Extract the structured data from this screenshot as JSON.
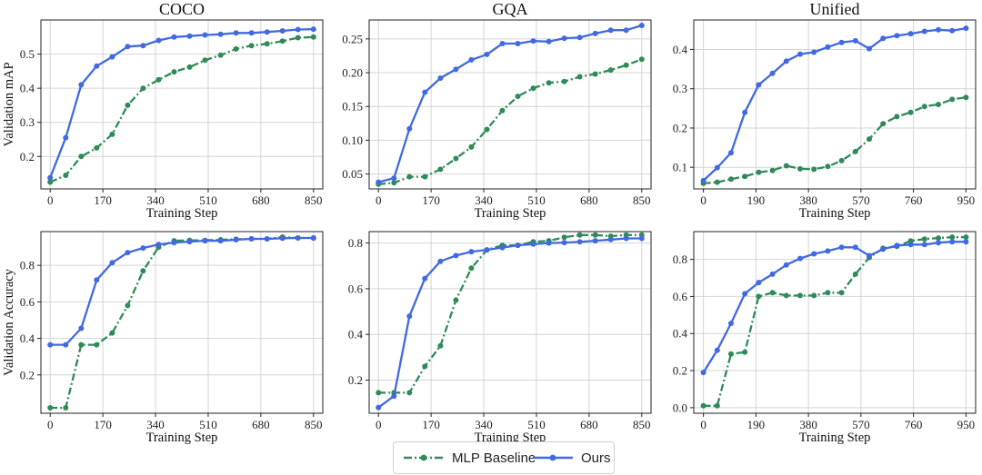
{
  "figure": {
    "legend": [
      {
        "key": "baseline",
        "label": "MLP Baseline",
        "color": "#2e8b57",
        "dash": "dash-dot"
      },
      {
        "key": "ours",
        "label": "Ours",
        "color": "#4169e1",
        "dash": "solid"
      }
    ]
  },
  "chart_data": [
    {
      "type": "line",
      "panel": "top-left",
      "title": "COCO",
      "xlabel": "Training Step",
      "ylabel": "Validation mAP",
      "xlim": [
        -30,
        880
      ],
      "ylim": [
        0.105,
        0.6
      ],
      "xticks": [
        0,
        170,
        340,
        510,
        680,
        850
      ],
      "yticks": [
        0.2,
        0.3,
        0.4,
        0.5
      ],
      "ytick_labels": [
        "0.2",
        "0.3",
        "0.4",
        "0.5"
      ],
      "grid": true,
      "series": [
        {
          "name": "MLP Baseline",
          "color": "#2e8b57",
          "dash": "dash-dot",
          "x": [
            0,
            50,
            100,
            150,
            200,
            250,
            300,
            350,
            400,
            450,
            500,
            550,
            600,
            650,
            700,
            750,
            800,
            850
          ],
          "y": [
            0.125,
            0.145,
            0.2,
            0.225,
            0.265,
            0.35,
            0.4,
            0.425,
            0.448,
            0.462,
            0.482,
            0.497,
            0.515,
            0.525,
            0.53,
            0.538,
            0.548,
            0.55
          ]
        },
        {
          "name": "Ours",
          "color": "#4169e1",
          "dash": "solid",
          "x": [
            0,
            50,
            100,
            150,
            200,
            250,
            300,
            350,
            400,
            450,
            500,
            550,
            600,
            650,
            700,
            750,
            800,
            850
          ],
          "y": [
            0.138,
            0.255,
            0.41,
            0.465,
            0.492,
            0.522,
            0.525,
            0.54,
            0.55,
            0.553,
            0.556,
            0.558,
            0.562,
            0.562,
            0.565,
            0.568,
            0.572,
            0.573
          ]
        }
      ]
    },
    {
      "type": "line",
      "panel": "top-middle",
      "title": "GQA",
      "xlabel": "Training Step",
      "ylabel": "",
      "xlim": [
        -30,
        880
      ],
      "ylim": [
        0.028,
        0.278
      ],
      "xticks": [
        0,
        170,
        340,
        510,
        680,
        850
      ],
      "yticks": [
        0.05,
        0.1,
        0.15,
        0.2,
        0.25
      ],
      "ytick_labels": [
        "0.05",
        "0.10",
        "0.15",
        "0.20",
        "0.25"
      ],
      "grid": true,
      "series": [
        {
          "name": "MLP Baseline",
          "color": "#2e8b57",
          "dash": "dash-dot",
          "x": [
            0,
            50,
            100,
            150,
            200,
            250,
            300,
            350,
            400,
            450,
            500,
            550,
            600,
            650,
            700,
            750,
            800,
            850
          ],
          "y": [
            0.035,
            0.037,
            0.046,
            0.046,
            0.057,
            0.073,
            0.09,
            0.116,
            0.144,
            0.165,
            0.177,
            0.185,
            0.187,
            0.194,
            0.198,
            0.204,
            0.211,
            0.22
          ]
        },
        {
          "name": "Ours",
          "color": "#4169e1",
          "dash": "solid",
          "x": [
            0,
            50,
            100,
            150,
            200,
            250,
            300,
            350,
            400,
            450,
            500,
            550,
            600,
            650,
            700,
            750,
            800,
            850
          ],
          "y": [
            0.038,
            0.044,
            0.117,
            0.171,
            0.192,
            0.205,
            0.219,
            0.227,
            0.243,
            0.243,
            0.247,
            0.246,
            0.251,
            0.252,
            0.258,
            0.263,
            0.263,
            0.27
          ]
        }
      ]
    },
    {
      "type": "line",
      "panel": "top-right",
      "title": "Unified",
      "xlabel": "Training Step",
      "ylabel": "",
      "xlim": [
        -35,
        985
      ],
      "ylim": [
        0.045,
        0.475
      ],
      "xticks": [
        0,
        190,
        380,
        570,
        760,
        950
      ],
      "yticks": [
        0.1,
        0.2,
        0.3,
        0.4
      ],
      "ytick_labels": [
        "0.1",
        "0.2",
        "0.3",
        "0.4"
      ],
      "grid": true,
      "series": [
        {
          "name": "MLP Baseline",
          "color": "#2e8b57",
          "dash": "dash-dot",
          "x": [
            0,
            50,
            100,
            150,
            200,
            250,
            300,
            350,
            400,
            450,
            500,
            550,
            600,
            650,
            700,
            750,
            800,
            850,
            900,
            950
          ],
          "y": [
            0.059,
            0.062,
            0.07,
            0.077,
            0.087,
            0.092,
            0.104,
            0.096,
            0.095,
            0.102,
            0.117,
            0.14,
            0.172,
            0.211,
            0.229,
            0.24,
            0.255,
            0.26,
            0.273,
            0.278
          ]
        },
        {
          "name": "Ours",
          "color": "#4169e1",
          "dash": "solid",
          "x": [
            0,
            50,
            100,
            150,
            200,
            250,
            300,
            350,
            400,
            450,
            500,
            550,
            600,
            650,
            700,
            750,
            800,
            850,
            900,
            950
          ],
          "y": [
            0.066,
            0.099,
            0.137,
            0.24,
            0.31,
            0.339,
            0.37,
            0.388,
            0.393,
            0.406,
            0.418,
            0.422,
            0.402,
            0.428,
            0.435,
            0.44,
            0.446,
            0.45,
            0.448,
            0.454
          ]
        }
      ]
    },
    {
      "type": "line",
      "panel": "bottom-left",
      "title": "",
      "xlabel": "Training Step",
      "ylabel": "Validation Accuracy",
      "xlim": [
        -30,
        880
      ],
      "ylim": [
        -0.01,
        0.985
      ],
      "xticks": [
        0,
        170,
        340,
        510,
        680,
        850
      ],
      "yticks": [
        0.2,
        0.4,
        0.6,
        0.8
      ],
      "ytick_labels": [
        "0.2",
        "0.4",
        "0.6",
        "0.8"
      ],
      "grid": true,
      "series": [
        {
          "name": "MLP Baseline",
          "color": "#2e8b57",
          "dash": "dash-dot",
          "x": [
            0,
            50,
            100,
            150,
            200,
            250,
            300,
            350,
            400,
            450,
            500,
            550,
            600,
            650,
            700,
            750,
            800,
            850
          ],
          "y": [
            0.02,
            0.02,
            0.365,
            0.365,
            0.43,
            0.58,
            0.77,
            0.9,
            0.935,
            0.937,
            0.937,
            0.94,
            0.943,
            0.945,
            0.945,
            0.955,
            0.95,
            0.95
          ]
        },
        {
          "name": "Ours",
          "color": "#4169e1",
          "dash": "solid",
          "x": [
            0,
            50,
            100,
            150,
            200,
            250,
            300,
            350,
            400,
            450,
            500,
            550,
            600,
            650,
            700,
            750,
            800,
            850
          ],
          "y": [
            0.365,
            0.365,
            0.455,
            0.72,
            0.815,
            0.87,
            0.895,
            0.915,
            0.925,
            0.93,
            0.935,
            0.935,
            0.94,
            0.945,
            0.945,
            0.948,
            0.95,
            0.95
          ]
        }
      ]
    },
    {
      "type": "line",
      "panel": "bottom-middle",
      "title": "",
      "xlabel": "Training Step",
      "ylabel": "",
      "xlim": [
        -30,
        880
      ],
      "ylim": [
        0.055,
        0.85
      ],
      "xticks": [
        0,
        170,
        340,
        510,
        680,
        850
      ],
      "yticks": [
        0.2,
        0.4,
        0.6,
        0.8
      ],
      "ytick_labels": [
        "0.2",
        "0.4",
        "0.6",
        "0.8"
      ],
      "grid": true,
      "series": [
        {
          "name": "MLP Baseline",
          "color": "#2e8b57",
          "dash": "dash-dot",
          "x": [
            0,
            50,
            100,
            150,
            200,
            250,
            300,
            350,
            400,
            450,
            500,
            550,
            600,
            650,
            700,
            750,
            800,
            850
          ],
          "y": [
            0.145,
            0.145,
            0.145,
            0.26,
            0.35,
            0.55,
            0.69,
            0.77,
            0.79,
            0.79,
            0.805,
            0.81,
            0.825,
            0.835,
            0.835,
            0.83,
            0.835,
            0.835
          ]
        },
        {
          "name": "Ours",
          "color": "#4169e1",
          "dash": "solid",
          "x": [
            0,
            50,
            100,
            150,
            200,
            250,
            300,
            350,
            400,
            450,
            500,
            550,
            600,
            650,
            700,
            750,
            800,
            850
          ],
          "y": [
            0.08,
            0.13,
            0.48,
            0.645,
            0.72,
            0.745,
            0.762,
            0.77,
            0.78,
            0.79,
            0.795,
            0.8,
            0.802,
            0.805,
            0.81,
            0.815,
            0.82,
            0.82
          ]
        }
      ]
    },
    {
      "type": "line",
      "panel": "bottom-right",
      "title": "",
      "xlabel": "Training Step",
      "ylabel": "",
      "xlim": [
        -35,
        985
      ],
      "ylim": [
        -0.03,
        0.95
      ],
      "xticks": [
        0,
        190,
        380,
        570,
        760,
        950
      ],
      "yticks": [
        0.0,
        0.2,
        0.4,
        0.6,
        0.8
      ],
      "ytick_labels": [
        "0.0",
        "0.2",
        "0.4",
        "0.6",
        "0.8"
      ],
      "grid": true,
      "series": [
        {
          "name": "MLP Baseline",
          "color": "#2e8b57",
          "dash": "dash-dot",
          "x": [
            0,
            50,
            100,
            150,
            200,
            250,
            300,
            350,
            400,
            450,
            500,
            550,
            600,
            650,
            700,
            750,
            800,
            850,
            900,
            950
          ],
          "y": [
            0.01,
            0.01,
            0.29,
            0.3,
            0.6,
            0.62,
            0.605,
            0.605,
            0.605,
            0.62,
            0.62,
            0.72,
            0.81,
            0.86,
            0.87,
            0.9,
            0.91,
            0.915,
            0.92,
            0.92
          ]
        },
        {
          "name": "Ours",
          "color": "#4169e1",
          "dash": "solid",
          "x": [
            0,
            50,
            100,
            150,
            200,
            250,
            300,
            350,
            400,
            450,
            500,
            550,
            600,
            650,
            700,
            750,
            800,
            850,
            900,
            950
          ],
          "y": [
            0.19,
            0.31,
            0.455,
            0.615,
            0.675,
            0.72,
            0.77,
            0.805,
            0.83,
            0.845,
            0.865,
            0.865,
            0.82,
            0.855,
            0.875,
            0.88,
            0.88,
            0.89,
            0.895,
            0.895
          ]
        }
      ]
    }
  ]
}
